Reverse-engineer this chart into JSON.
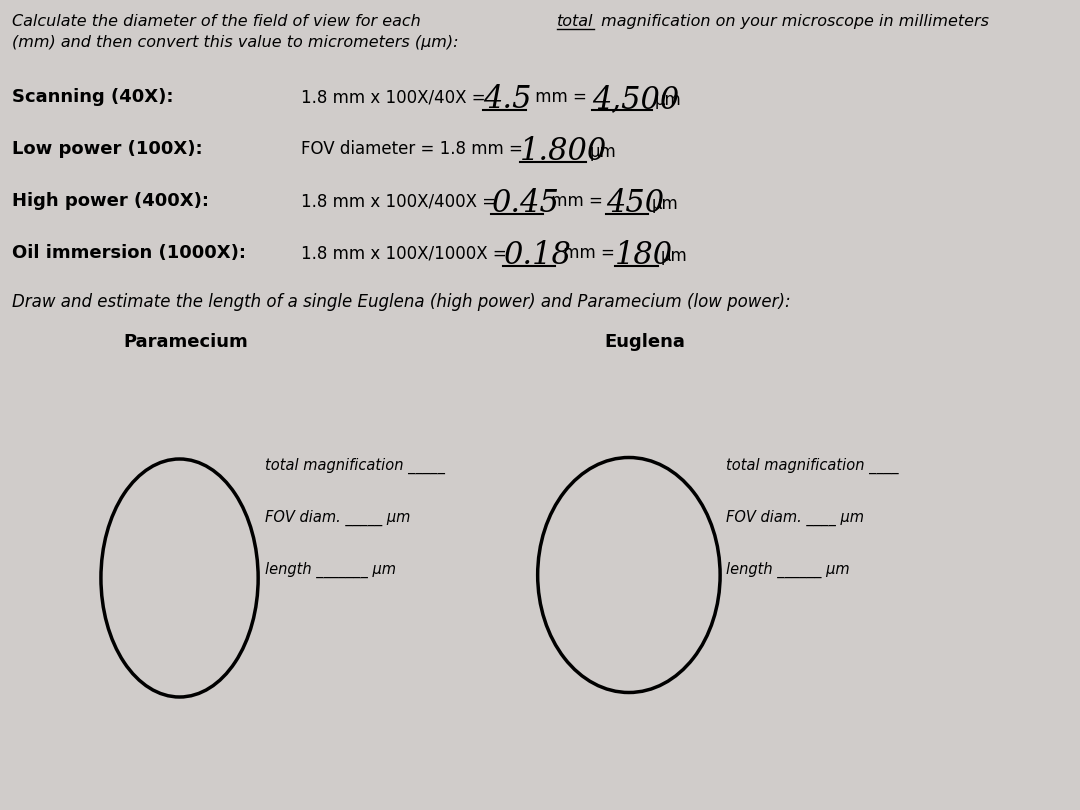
{
  "bg_color": "#d0ccca",
  "title_line1": "Calculate the diameter of the field of view for each ",
  "title_total": "total",
  "title_line1b": " magnification on your microscope in millimeters",
  "title_line2": "(mm) and then convert this value to micrometers (μm):",
  "draw_text": "Draw and estimate the length of a single Euglena (high power) and Paramecium (low power):",
  "paramecium_label": "Paramecium",
  "euglena_label": "Euglena",
  "row_labels": [
    "Scanning (40X):",
    "Low power (100X):",
    "High power (400X):",
    "Oil immersion (1000X):"
  ],
  "row_formulas": [
    "1.8 mm x 100X/40X = ",
    "FOV diameter = 1.8 mm = ",
    "1.8 mm x 100X/400X = ",
    "1.8 mm x 100X/1000X = "
  ],
  "row_hw_mm": [
    "4.5",
    "1.800",
    "0.45",
    "0.18"
  ],
  "row_mm_suffix": [
    " mm = ",
    "",
    " mm = ",
    " mm = "
  ],
  "row_hw_um": [
    "4,500",
    "",
    "450",
    "180"
  ],
  "row_um_suffix": [
    "μm",
    "μm",
    "μm",
    "μm"
  ],
  "circle_texts_left": [
    "total magnification _____",
    "FOV diam. _____ μm",
    "length _______ μm"
  ],
  "circle_texts_right": [
    "total magnification ____",
    "FOV diam. ____ μm",
    "length ______ μm"
  ]
}
